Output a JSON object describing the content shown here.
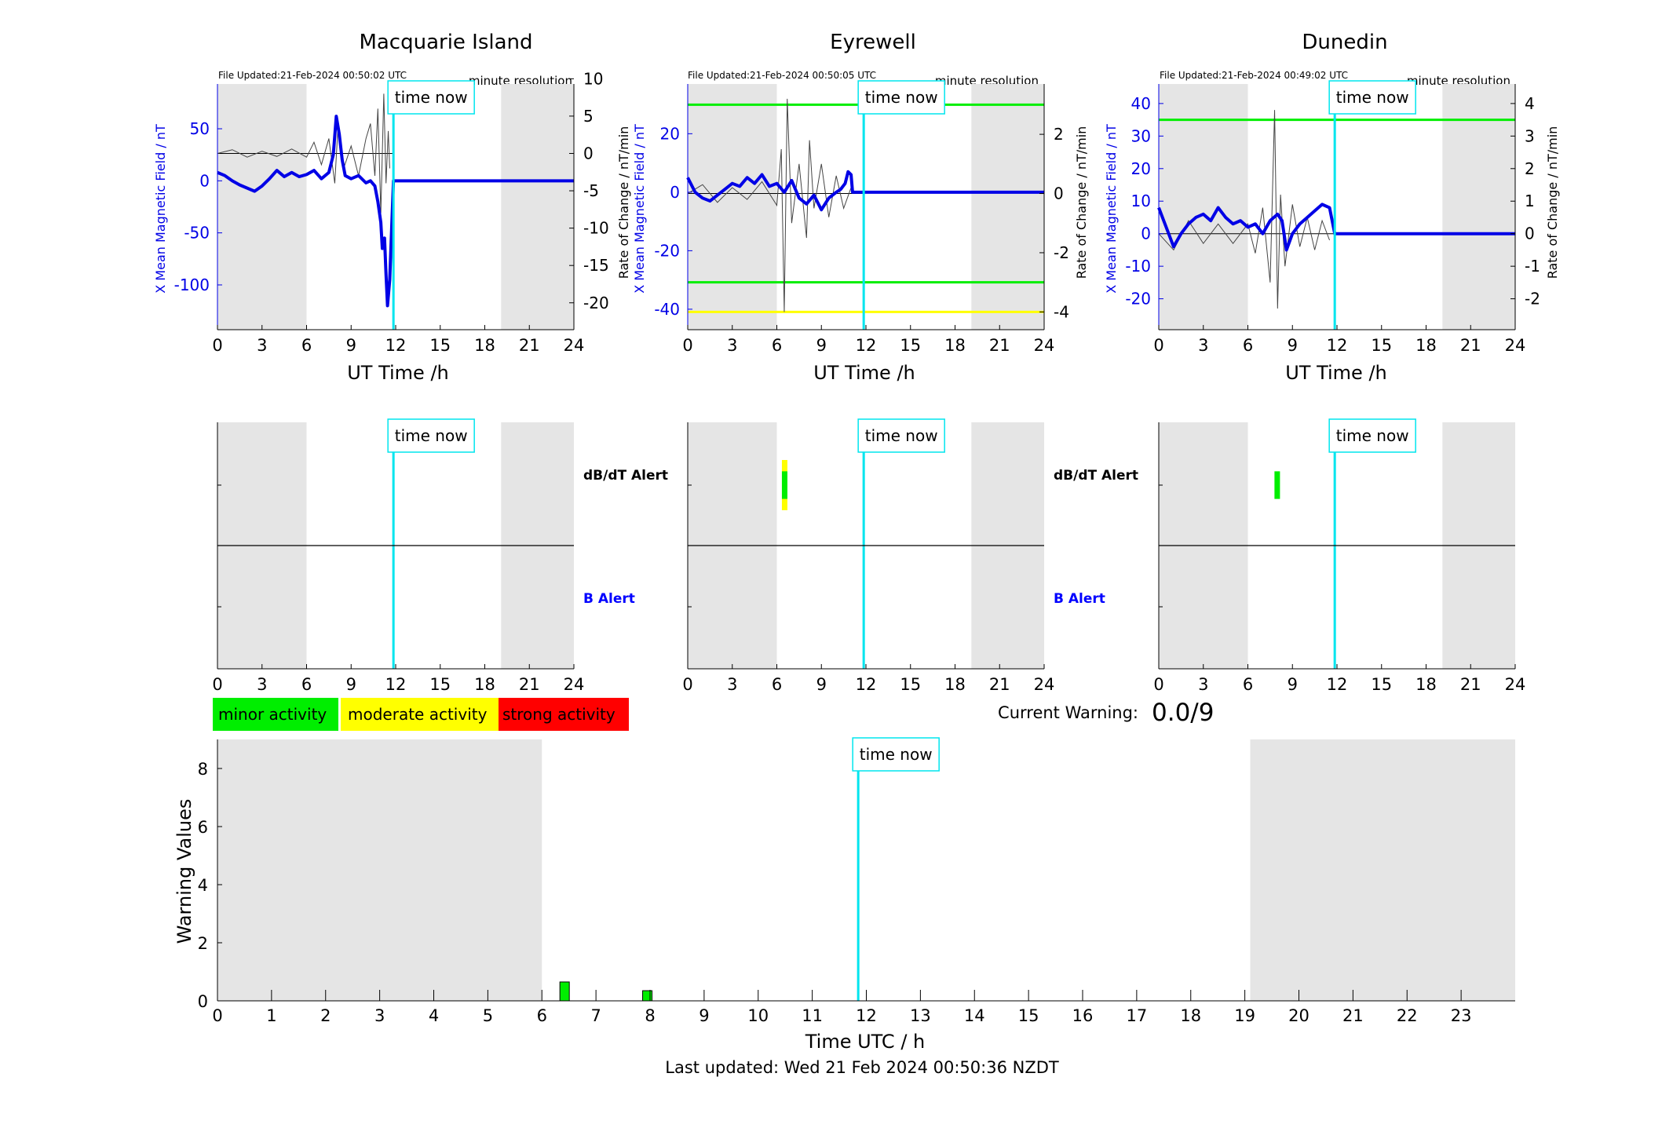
{
  "colors": {
    "shade": "#e5e5e5",
    "time_now": "#00e5ee",
    "x_field": "#0000e6",
    "rate": "#444444",
    "green": "#00ee00",
    "yellow": "#ffff00",
    "red": "#ff0000"
  },
  "time_now_h": 11.85,
  "shade_ranges_h": [
    [
      0,
      6
    ],
    [
      19.1,
      24
    ]
  ],
  "labels": {
    "time_now": "time now",
    "minute_resolution": "minute resolution",
    "ut_time": "UT Time /h",
    "ylabel_left": "X Mean Magnetic Field / nT",
    "ylabel_right": "Rate of Change / nT/min",
    "dbdt_alert": "dB/dT Alert",
    "b_alert": "B Alert",
    "current_warning_label": "Current Warning:",
    "current_warning_value": "0.0/9",
    "warning_ylabel": "Warning Values",
    "warning_xlabel": "Time UTC / h",
    "last_updated": "Last updated: Wed 21 Feb 2024 00:50:36 NZDT"
  },
  "legend": [
    {
      "label": "minor activity",
      "color": "#00ee00"
    },
    {
      "label": "moderate activity",
      "color": "#ffff00"
    },
    {
      "label": "strong activity",
      "color": "#ff0000"
    }
  ],
  "chart_data": [
    {
      "type": "line",
      "title": "Macquarie Island",
      "file_updated": "File Updated:21-Feb-2024 00:50:02 UTC",
      "xlabel": "UT Time /h",
      "xlim": [
        0,
        24
      ],
      "xticks": [
        "0",
        "3",
        "6",
        "9",
        "12",
        "15",
        "18",
        "21",
        "24"
      ],
      "ylabel_left": "X Mean Magnetic Field / nT",
      "ylim_left": [
        -143,
        93
      ],
      "yticks_left": [
        "50",
        "0",
        "-50",
        "-100"
      ],
      "ylabel_right": "Rate of Change / nT/min",
      "ylim_right": [
        -23.6,
        9.3
      ],
      "yticks_right": [
        "10",
        "5",
        "0",
        "-5",
        "-10",
        "-15",
        "-20"
      ],
      "series": [
        {
          "kind": "mean_field",
          "x": [
            0,
            0.5,
            1,
            1.5,
            2,
            2.5,
            3,
            3.5,
            4,
            4.5,
            5,
            5.5,
            6,
            6.5,
            7,
            7.5,
            7.8,
            8.0,
            8.2,
            8.4,
            8.6,
            9,
            9.5,
            10,
            10.3,
            10.6,
            10.8,
            11.0,
            11.1,
            11.25,
            11.35,
            11.45,
            11.6,
            11.85,
            24
          ],
          "y": [
            8,
            5,
            0,
            -4,
            -7,
            -10,
            -5,
            2,
            10,
            4,
            8,
            4,
            6,
            10,
            2,
            8,
            25,
            62,
            45,
            20,
            5,
            2,
            5,
            -2,
            0,
            -5,
            -20,
            -40,
            -65,
            -55,
            -90,
            -120,
            -95,
            0,
            0
          ]
        },
        {
          "kind": "rate_of_change",
          "x": [
            0,
            1,
            2,
            3,
            4,
            5,
            6,
            6.5,
            7,
            7.5,
            7.9,
            8.1,
            8.5,
            9,
            9.5,
            10,
            10.3,
            10.6,
            10.8,
            11.0,
            11.2,
            11.35,
            11.5,
            11.6
          ],
          "y": [
            0,
            0.5,
            -0.5,
            0.3,
            -0.4,
            0.6,
            -0.5,
            1.5,
            -1.5,
            2,
            -4,
            3,
            -2,
            1,
            -3,
            2,
            4,
            -3,
            6,
            -8,
            8,
            -4,
            3,
            -2
          ]
        }
      ]
    },
    {
      "type": "line",
      "title": "Eyrewell",
      "file_updated": "File Updated:21-Feb-2024 00:50:05 UTC",
      "xlabel": "UT Time /h",
      "xlim": [
        0,
        24
      ],
      "xticks": [
        "0",
        "3",
        "6",
        "9",
        "12",
        "15",
        "18",
        "21",
        "24"
      ],
      "ylabel_left": "X Mean Magnetic Field / nT",
      "ylim_left": [
        -47,
        37
      ],
      "yticks_left": [
        "20",
        "0",
        "-20",
        "-40"
      ],
      "ylabel_right": "Rate of Change / nT/min",
      "ylim_right": [
        -4.6,
        3.7
      ],
      "yticks_right": [
        "2",
        "0",
        "-2",
        "-4"
      ],
      "thresholds": [
        {
          "color": "green",
          "y_right": 3
        },
        {
          "color": "green",
          "y_right": -3
        },
        {
          "color": "yellow",
          "y_right": -4
        }
      ],
      "series": [
        {
          "kind": "mean_field",
          "x": [
            0,
            0.5,
            1,
            1.5,
            2,
            2.5,
            3,
            3.5,
            4,
            4.5,
            5,
            5.5,
            6,
            6.5,
            7,
            7.5,
            8,
            8.5,
            9,
            9.5,
            10,
            10.3,
            10.6,
            10.8,
            11.0,
            11.1,
            11.85,
            24
          ],
          "y": [
            5,
            0,
            -2,
            -3,
            -1,
            1,
            3,
            2,
            5,
            3,
            6,
            2,
            3,
            0,
            4,
            -2,
            -4,
            -1,
            -6,
            -2,
            0,
            1,
            3,
            7,
            6,
            0,
            0,
            0
          ]
        },
        {
          "kind": "rate_of_change",
          "x": [
            0,
            1,
            2,
            3,
            4,
            5,
            6,
            6.3,
            6.5,
            6.7,
            7,
            7.5,
            8,
            8.2,
            8.5,
            9,
            9.5,
            10,
            10.5,
            11
          ],
          "y": [
            0,
            0.3,
            -0.3,
            0.2,
            -0.2,
            0.4,
            -0.4,
            1.5,
            -4,
            3.2,
            -1,
            1,
            -1.5,
            1.8,
            -0.5,
            1,
            -0.8,
            0.6,
            -0.5,
            0.2
          ]
        }
      ]
    },
    {
      "type": "line",
      "title": "Dunedin",
      "file_updated": "File Updated:21-Feb-2024 00:49:02 UTC",
      "xlabel": "UT Time /h",
      "xlim": [
        0,
        24
      ],
      "xticks": [
        "0",
        "3",
        "6",
        "9",
        "12",
        "15",
        "18",
        "21",
        "24"
      ],
      "ylabel_left": "X Mean Magnetic Field / nT",
      "ylim_left": [
        -29.5,
        46
      ],
      "yticks_left": [
        "40",
        "30",
        "20",
        "10",
        "0",
        "-10",
        "-20"
      ],
      "ylabel_right": "Rate of Change / nT/min",
      "ylim_right": [
        -2.95,
        4.6
      ],
      "yticks_right": [
        "4",
        "3",
        "2",
        "1",
        "0",
        "-1",
        "-2"
      ],
      "thresholds": [
        {
          "color": "green",
          "y_right": 3.5
        }
      ],
      "series": [
        {
          "kind": "mean_field",
          "x": [
            0,
            0.5,
            1,
            1.5,
            2,
            2.5,
            3,
            3.5,
            4,
            4.5,
            5,
            5.5,
            6,
            6.5,
            7,
            7.5,
            8,
            8.3,
            8.6,
            9,
            9.5,
            10,
            10.5,
            11,
            11.5,
            11.85,
            24
          ],
          "y": [
            8,
            2,
            -4,
            0,
            3,
            5,
            6,
            4,
            8,
            5,
            3,
            4,
            2,
            3,
            0,
            4,
            6,
            4,
            -5,
            0,
            3,
            5,
            7,
            9,
            8,
            0,
            0
          ]
        },
        {
          "kind": "rate_of_change",
          "x": [
            0,
            1,
            2,
            3,
            4,
            5,
            6,
            6.5,
            7,
            7.5,
            7.8,
            8,
            8.2,
            8.5,
            9,
            9.5,
            10,
            10.5,
            11,
            11.5
          ],
          "y": [
            0,
            -0.5,
            0.4,
            -0.3,
            0.3,
            -0.3,
            0.3,
            -0.6,
            0.8,
            -1.5,
            3.8,
            -2.3,
            1.2,
            -1,
            0.9,
            -0.4,
            0.5,
            -0.5,
            0.4,
            -0.2
          ]
        }
      ]
    },
    {
      "type": "bar",
      "title": "",
      "xlabel": "Time UTC / h",
      "ylabel": "Warning Values",
      "xlim": [
        0,
        24
      ],
      "ylim": [
        0,
        9
      ],
      "xticks": [
        "0",
        "1",
        "2",
        "3",
        "4",
        "5",
        "6",
        "7",
        "8",
        "9",
        "10",
        "11",
        "12",
        "13",
        "14",
        "15",
        "16",
        "17",
        "18",
        "19",
        "20",
        "21",
        "22",
        "23"
      ],
      "yticks": [
        "0",
        "2",
        "4",
        "6",
        "8"
      ],
      "bars": [
        {
          "x": 6.42,
          "value": 0.65,
          "color": "green"
        },
        {
          "x": 7.95,
          "value": 0.35,
          "color": "green"
        }
      ]
    }
  ],
  "alerts": [
    {
      "station": "Macquarie Island",
      "xticks": [
        "0",
        "3",
        "6",
        "9",
        "12",
        "15",
        "18",
        "21",
        "24"
      ],
      "markers": []
    },
    {
      "station": "Eyrewell",
      "xticks": [
        "0",
        "3",
        "6",
        "9",
        "12",
        "15",
        "18",
        "21",
        "24"
      ],
      "markers": [
        {
          "x": 6.5,
          "color": "yellow",
          "band": "dbdt",
          "height": 1.0
        },
        {
          "x": 6.5,
          "color": "green",
          "band": "dbdt",
          "height": 0.55
        }
      ]
    },
    {
      "station": "Dunedin",
      "xticks": [
        "0",
        "3",
        "6",
        "9",
        "12",
        "15",
        "18",
        "21",
        "24"
      ],
      "markers": [
        {
          "x": 7.95,
          "color": "green",
          "band": "dbdt",
          "height": 0.55
        }
      ]
    }
  ]
}
